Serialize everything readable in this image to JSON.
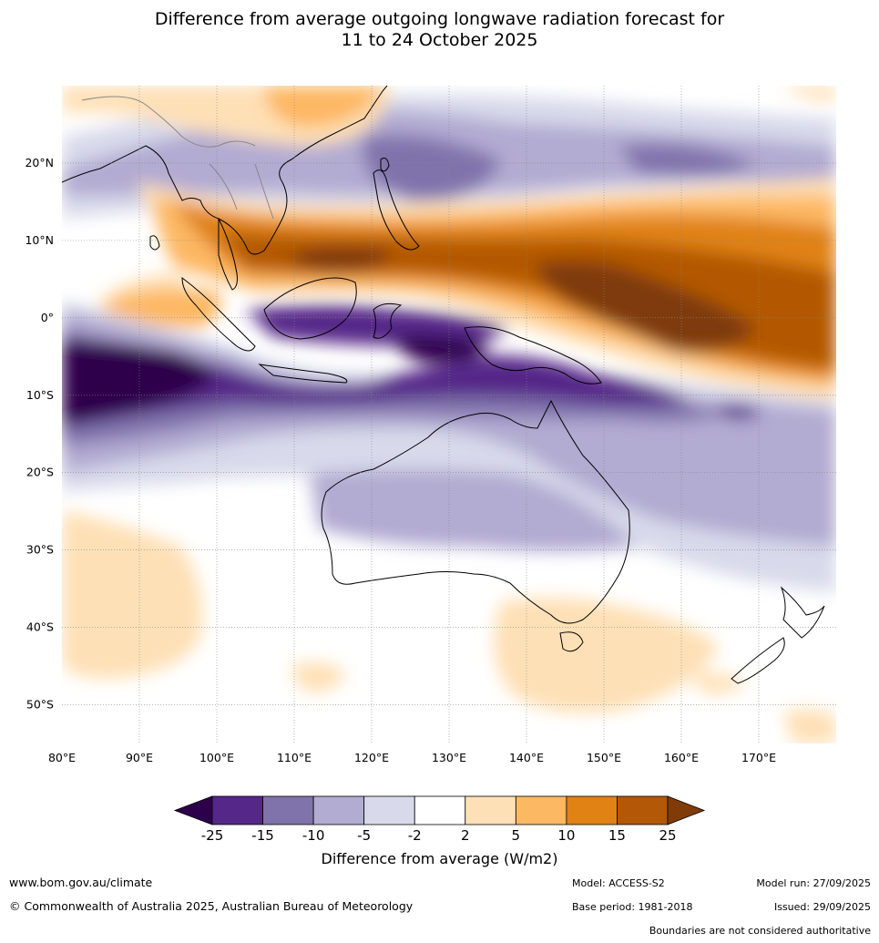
{
  "title": {
    "line1": "Difference from average outgoing longwave radiation forecast for",
    "line2": "11 to 24 October 2025"
  },
  "map": {
    "lon_labels": [
      "80°E",
      "90°E",
      "100°E",
      "110°E",
      "120°E",
      "130°E",
      "140°E",
      "150°E",
      "160°E",
      "170°E"
    ],
    "lon_values": [
      80,
      90,
      100,
      110,
      120,
      130,
      140,
      150,
      160,
      170
    ],
    "lat_labels": [
      "20°N",
      "10°N",
      "0°",
      "10°S",
      "20°S",
      "30°S",
      "40°S",
      "50°S"
    ],
    "lat_values": [
      20,
      10,
      0,
      -10,
      -20,
      -30,
      -40,
      -50
    ],
    "lon_range": [
      80,
      180
    ],
    "lat_range": [
      -55,
      30
    ]
  },
  "colorbar": {
    "title": "Difference from average (W/m2)",
    "tick_labels": [
      "-25",
      "-15",
      "-10",
      "-5",
      "-2",
      "2",
      "5",
      "10",
      "15",
      "25"
    ],
    "colors": [
      "#2d004b",
      "#542788",
      "#8073ac",
      "#b2abd2",
      "#d8daeb",
      "#ffffff",
      "#fee0b6",
      "#fdb863",
      "#e08214",
      "#b35806",
      "#7f3b08"
    ]
  },
  "footer": {
    "website": "www.bom.gov.au/climate",
    "copyright": "© Commonwealth of Australia 2025, Australian Bureau of Meteorology",
    "model": "Model: ACCESS-S2",
    "base_period": "Base period: 1981-2018",
    "model_run": "Model run: 27/09/2025",
    "issued": "Issued: 29/09/2025",
    "disclaimer": "Boundaries are not considered authoritative"
  }
}
